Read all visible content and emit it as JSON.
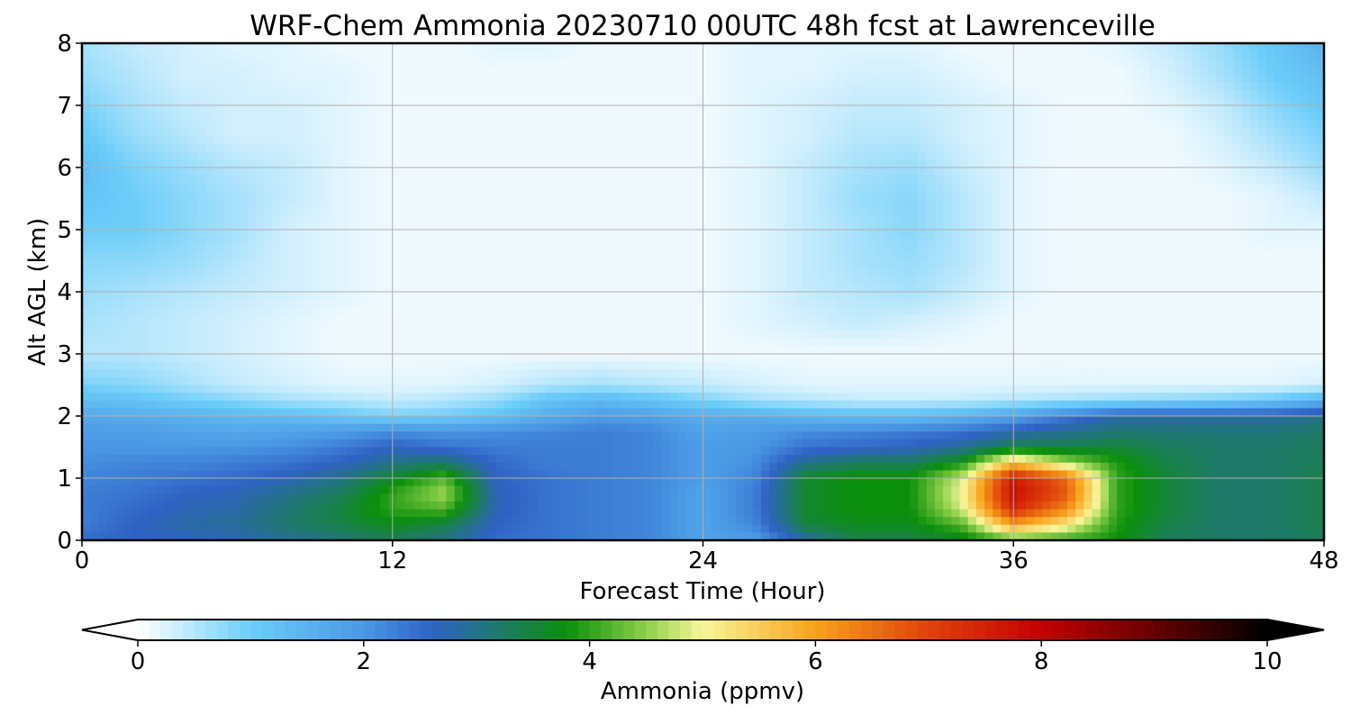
{
  "chart_data": {
    "type": "heatmap",
    "title": "WRF-Chem Ammonia  20230710 00UTC 48h fcst at Lawrenceville",
    "xlabel": "Forecast Time (Hour)",
    "ylabel": "Alt AGL (km)",
    "xlim": [
      0,
      48
    ],
    "ylim": [
      0,
      8
    ],
    "xticks": [
      0,
      12,
      24,
      36,
      48
    ],
    "yticks": [
      0,
      1,
      2,
      3,
      4,
      5,
      6,
      7,
      8
    ],
    "grid": true,
    "x": [
      0,
      2,
      4,
      6,
      8,
      10,
      12,
      14,
      16,
      18,
      20,
      22,
      24,
      26,
      28,
      30,
      32,
      34,
      36,
      38,
      40,
      42,
      44,
      46,
      48
    ],
    "y": [
      0,
      0.25,
      0.5,
      0.75,
      1,
      1.25,
      1.5,
      1.75,
      2,
      2.25,
      2.5,
      3,
      3.5,
      4,
      4.5,
      5,
      5.5,
      6,
      6.5,
      7,
      7.5,
      8
    ],
    "values": [
      [
        2.5,
        2.6,
        2.6,
        2.7,
        2.9,
        3.1,
        3.3,
        3.0,
        2.5,
        2.4,
        2.3,
        2.2,
        1.8,
        1.9,
        2.8,
        3.4,
        3.4,
        3.6,
        4.2,
        4.0,
        3.8,
        3.3,
        3.2,
        3.2,
        3.3
      ],
      [
        2.3,
        2.6,
        2.8,
        2.9,
        3.2,
        3.4,
        3.7,
        3.4,
        2.6,
        2.4,
        2.3,
        2.2,
        1.8,
        2.2,
        3.5,
        3.7,
        3.7,
        4.2,
        6.0,
        5.2,
        3.9,
        3.4,
        3.2,
        3.2,
        3.4
      ],
      [
        2.3,
        2.5,
        2.7,
        2.8,
        3.1,
        3.5,
        4.0,
        4.2,
        2.7,
        2.4,
        2.3,
        2.2,
        1.8,
        2.3,
        3.6,
        3.8,
        3.8,
        4.8,
        7.4,
        6.3,
        4.0,
        3.5,
        3.2,
        3.2,
        3.4
      ],
      [
        2.3,
        2.4,
        2.6,
        2.7,
        3.0,
        3.3,
        4.0,
        4.6,
        2.7,
        2.4,
        2.3,
        2.2,
        1.8,
        2.3,
        3.6,
        3.8,
        3.8,
        5.0,
        7.8,
        6.8,
        4.0,
        3.5,
        3.2,
        3.2,
        3.4
      ],
      [
        2.2,
        2.3,
        2.4,
        2.5,
        2.7,
        3.0,
        3.6,
        4.2,
        2.6,
        2.4,
        2.3,
        2.2,
        1.9,
        2.2,
        3.6,
        3.8,
        3.8,
        4.8,
        7.6,
        6.6,
        4.0,
        3.5,
        3.2,
        3.2,
        3.4
      ],
      [
        2.1,
        2.2,
        2.2,
        2.3,
        2.4,
        2.6,
        3.0,
        3.2,
        2.5,
        2.3,
        2.3,
        2.2,
        1.9,
        2.1,
        3.0,
        3.3,
        3.3,
        3.8,
        5.6,
        4.6,
        3.9,
        3.4,
        3.2,
        3.2,
        3.3
      ],
      [
        2.0,
        2.0,
        2.0,
        2.0,
        2.1,
        2.3,
        2.6,
        2.4,
        2.3,
        2.3,
        2.3,
        2.2,
        1.9,
        2.0,
        2.4,
        2.5,
        2.6,
        2.9,
        3.4,
        3.4,
        3.5,
        3.3,
        3.2,
        3.2,
        3.3
      ],
      [
        1.9,
        1.9,
        1.8,
        1.7,
        1.8,
        1.9,
        2.1,
        2.0,
        2.1,
        2.2,
        2.3,
        2.2,
        1.8,
        1.9,
        2.1,
        2.2,
        2.3,
        2.4,
        2.7,
        2.9,
        3.1,
        3.1,
        3.1,
        3.1,
        3.2
      ],
      [
        1.7,
        1.6,
        1.5,
        1.4,
        1.3,
        1.1,
        0.9,
        1.0,
        1.2,
        1.6,
        1.9,
        1.8,
        1.6,
        1.6,
        1.4,
        1.3,
        1.3,
        1.5,
        1.8,
        2.3,
        2.8,
        2.8,
        2.8,
        2.8,
        3.0
      ],
      [
        1.3,
        1.2,
        1.0,
        0.8,
        0.6,
        0.5,
        0.4,
        0.5,
        0.7,
        1.2,
        1.4,
        1.2,
        0.9,
        0.6,
        0.5,
        0.4,
        0.4,
        0.4,
        0.5,
        0.6,
        0.7,
        0.8,
        0.9,
        1.1,
        1.5
      ],
      [
        0.9,
        0.8,
        0.6,
        0.4,
        0.3,
        0.2,
        0.2,
        0.2,
        0.3,
        0.5,
        0.6,
        0.5,
        0.4,
        0.3,
        0.2,
        0.2,
        0.2,
        0.2,
        0.2,
        0.2,
        0.2,
        0.2,
        0.2,
        0.2,
        0.3
      ],
      [
        0.5,
        0.5,
        0.4,
        0.3,
        0.2,
        0.1,
        0.1,
        0.1,
        0.1,
        0.1,
        0.1,
        0.1,
        0.1,
        0.1,
        0.1,
        0.1,
        0.1,
        0.1,
        0.1,
        0.1,
        0.1,
        0.1,
        0.1,
        0.1,
        0.1
      ],
      [
        0.6,
        0.5,
        0.4,
        0.3,
        0.2,
        0.1,
        0.1,
        0.1,
        0.1,
        0.1,
        0.1,
        0.1,
        0.1,
        0.2,
        0.3,
        0.4,
        0.3,
        0.2,
        0.1,
        0.1,
        0.1,
        0.1,
        0.1,
        0.1,
        0.1
      ],
      [
        0.7,
        0.6,
        0.5,
        0.4,
        0.3,
        0.2,
        0.1,
        0.1,
        0.1,
        0.1,
        0.1,
        0.1,
        0.1,
        0.2,
        0.4,
        0.5,
        0.6,
        0.4,
        0.2,
        0.1,
        0.1,
        0.1,
        0.1,
        0.1,
        0.1
      ],
      [
        0.8,
        0.8,
        0.7,
        0.5,
        0.3,
        0.2,
        0.1,
        0.1,
        0.1,
        0.1,
        0.1,
        0.1,
        0.1,
        0.2,
        0.4,
        0.6,
        0.7,
        0.5,
        0.2,
        0.1,
        0.1,
        0.1,
        0.1,
        0.1,
        0.1
      ],
      [
        1.0,
        1.0,
        0.8,
        0.6,
        0.3,
        0.2,
        0.1,
        0.1,
        0.1,
        0.1,
        0.1,
        0.1,
        0.1,
        0.2,
        0.4,
        0.6,
        0.8,
        0.5,
        0.2,
        0.1,
        0.1,
        0.1,
        0.1,
        0.2,
        0.2
      ],
      [
        1.2,
        1.0,
        0.8,
        0.6,
        0.4,
        0.2,
        0.1,
        0.1,
        0.1,
        0.1,
        0.1,
        0.1,
        0.1,
        0.2,
        0.4,
        0.7,
        0.8,
        0.5,
        0.2,
        0.1,
        0.1,
        0.1,
        0.1,
        0.2,
        0.4
      ],
      [
        1.3,
        0.9,
        0.7,
        0.5,
        0.4,
        0.2,
        0.1,
        0.1,
        0.1,
        0.1,
        0.1,
        0.1,
        0.1,
        0.2,
        0.4,
        0.6,
        0.7,
        0.4,
        0.2,
        0.1,
        0.1,
        0.1,
        0.2,
        0.4,
        0.7
      ],
      [
        1.1,
        0.7,
        0.5,
        0.3,
        0.3,
        0.2,
        0.1,
        0.1,
        0.1,
        0.1,
        0.1,
        0.1,
        0.1,
        0.2,
        0.3,
        0.5,
        0.5,
        0.3,
        0.2,
        0.1,
        0.1,
        0.1,
        0.3,
        0.6,
        0.9
      ],
      [
        0.9,
        0.6,
        0.4,
        0.3,
        0.3,
        0.2,
        0.1,
        0.1,
        0.1,
        0.1,
        0.1,
        0.1,
        0.1,
        0.2,
        0.3,
        0.4,
        0.4,
        0.3,
        0.2,
        0.1,
        0.1,
        0.2,
        0.4,
        0.8,
        1.1
      ],
      [
        0.7,
        0.5,
        0.3,
        0.3,
        0.2,
        0.2,
        0.1,
        0.1,
        0.1,
        0.1,
        0.1,
        0.1,
        0.1,
        0.2,
        0.2,
        0.3,
        0.3,
        0.2,
        0.1,
        0.1,
        0.1,
        0.3,
        0.6,
        1.0,
        1.3
      ],
      [
        0.6,
        0.4,
        0.3,
        0.2,
        0.2,
        0.1,
        0.1,
        0.1,
        0.2,
        0.2,
        0.1,
        0.1,
        0.1,
        0.2,
        0.2,
        0.2,
        0.2,
        0.1,
        0.1,
        0.1,
        0.2,
        0.4,
        0.7,
        1.1,
        1.5
      ]
    ],
    "colorbar": {
      "label": "Ammonia  (ppmv)",
      "ticks": [
        0,
        2,
        4,
        6,
        8,
        10
      ],
      "range": [
        0,
        10
      ],
      "extend": "both",
      "stops": [
        {
          "v": 0.0,
          "c": "#ffffff"
        },
        {
          "v": 1.0,
          "c": "#6ccdf9"
        },
        {
          "v": 2.0,
          "c": "#4a98e4"
        },
        {
          "v": 2.6,
          "c": "#2f62c4"
        },
        {
          "v": 3.2,
          "c": "#1f7a6a"
        },
        {
          "v": 3.8,
          "c": "#0b8f0b"
        },
        {
          "v": 4.5,
          "c": "#8dd04a"
        },
        {
          "v": 5.0,
          "c": "#f8f69c"
        },
        {
          "v": 6.0,
          "c": "#f7a31a"
        },
        {
          "v": 7.0,
          "c": "#e0420b"
        },
        {
          "v": 8.0,
          "c": "#c20002"
        },
        {
          "v": 9.0,
          "c": "#660000"
        },
        {
          "v": 10.0,
          "c": "#000000"
        }
      ],
      "under_color": "#ffffff",
      "over_color": "#000000"
    }
  }
}
